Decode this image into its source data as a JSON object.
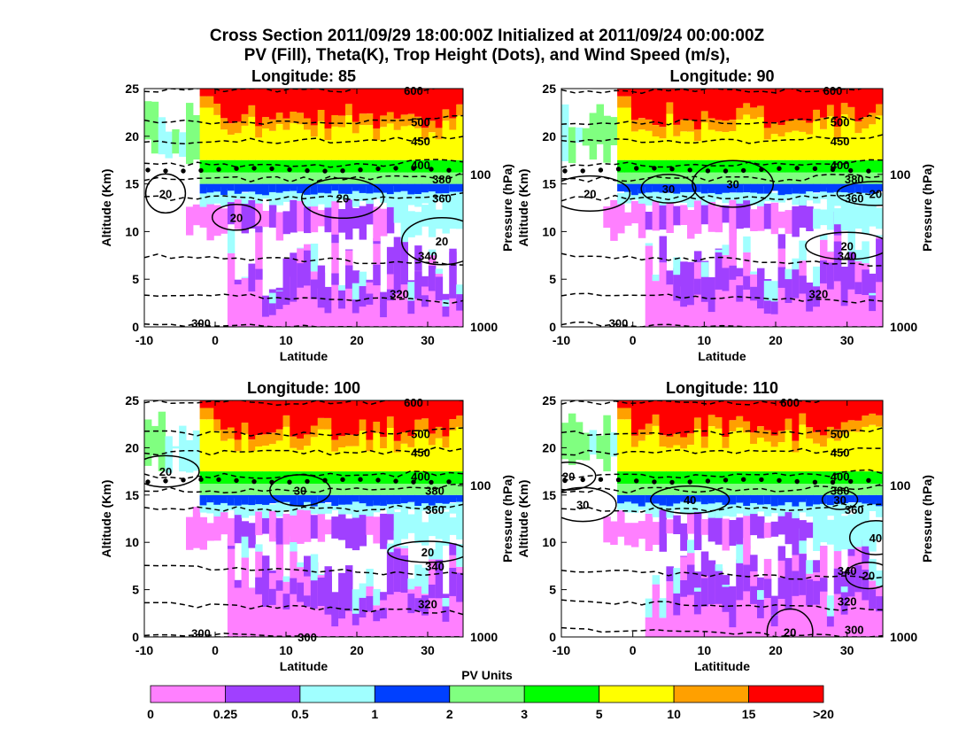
{
  "title": {
    "line1": "Cross Section 2011/09/29 18:00:00Z Initialized at 2011/09/24 00:00:00Z",
    "line2": "PV (Fill), Theta(K), Trop Height (Dots), and Wind Speed (m/s),"
  },
  "chart_data": [
    {
      "type": "heatmap",
      "title": "Longitude:  85",
      "xlabel": "Latitude",
      "ylabel": "Altitude (Km)",
      "ylabel_right": "Pressure (hPa)",
      "xlim": [
        -10,
        35
      ],
      "ylim": [
        0,
        25
      ],
      "x_ticks": [
        -10,
        0,
        10,
        20,
        30
      ],
      "y_ticks": [
        0,
        5,
        10,
        15,
        20,
        25
      ],
      "right_ticks": [
        {
          "label": "1000",
          "alt": 0
        },
        {
          "label": "100",
          "alt": 16
        }
      ],
      "tropopause_alt_km": 16.5,
      "theta_contours": [
        {
          "label": "300",
          "alt": 0.4,
          "lbl_x": -2
        },
        {
          "label": "320",
          "alt": 3.5,
          "lbl_x": 26
        },
        {
          "label": "340",
          "alt": 7.5,
          "lbl_x": 30
        },
        {
          "label": "360",
          "alt": 13.5,
          "lbl_x": 32
        },
        {
          "label": "380",
          "alt": 15.5,
          "lbl_x": 32
        },
        {
          "label": "400",
          "alt": 17.0,
          "lbl_x": 29
        },
        {
          "label": "450",
          "alt": 19.5,
          "lbl_x": 29
        },
        {
          "label": "500",
          "alt": 21.5,
          "lbl_x": 29
        },
        {
          "label": "600",
          "alt": 24.8,
          "lbl_x": 28
        }
      ],
      "wind_labels": [
        {
          "label": "20",
          "lat": -7,
          "alt": 14.0
        },
        {
          "label": "20",
          "lat": 3,
          "alt": 11.5
        },
        {
          "label": "20",
          "lat": 18,
          "alt": 13.5
        },
        {
          "label": "20",
          "lat": 32,
          "alt": 9.0
        }
      ]
    },
    {
      "type": "heatmap",
      "title": "Longitude:   90",
      "xlabel": "Latitude",
      "ylabel": "Altitude (Km)",
      "ylabel_right": "Pressure (hPa)",
      "xlim": [
        -10,
        35
      ],
      "ylim": [
        0,
        25
      ],
      "x_ticks": [
        -10,
        0,
        10,
        20,
        30
      ],
      "y_ticks": [
        0,
        5,
        10,
        15,
        20,
        25
      ],
      "right_ticks": [
        {
          "label": "1000",
          "alt": 0
        },
        {
          "label": "100",
          "alt": 16
        }
      ],
      "tropopause_alt_km": 16.5,
      "theta_contours": [
        {
          "label": "300",
          "alt": 0.4,
          "lbl_x": -2
        },
        {
          "label": "320",
          "alt": 3.5,
          "lbl_x": 26
        },
        {
          "label": "340",
          "alt": 7.5,
          "lbl_x": 30
        },
        {
          "label": "360",
          "alt": 13.5,
          "lbl_x": 31
        },
        {
          "label": "380",
          "alt": 15.5,
          "lbl_x": 31
        },
        {
          "label": "400",
          "alt": 17.0,
          "lbl_x": 29
        },
        {
          "label": "450",
          "alt": 19.5,
          "lbl_x": 29
        },
        {
          "label": "500",
          "alt": 21.5,
          "lbl_x": 29
        },
        {
          "label": "600",
          "alt": 24.8,
          "lbl_x": 28
        }
      ],
      "wind_labels": [
        {
          "label": "20",
          "lat": -6,
          "alt": 14.0
        },
        {
          "label": "30",
          "lat": 5,
          "alt": 14.5
        },
        {
          "label": "30",
          "lat": 14,
          "alt": 15.0
        },
        {
          "label": "20",
          "lat": 30,
          "alt": 8.5
        },
        {
          "label": "20",
          "lat": 34,
          "alt": 14.0
        }
      ]
    },
    {
      "type": "heatmap",
      "title": "Longitude:  100",
      "xlabel": "Latitude",
      "ylabel": "Altitude (Km)",
      "ylabel_right": "Pressure (hPa)",
      "xlim": [
        -10,
        35
      ],
      "ylim": [
        0,
        25
      ],
      "x_ticks": [
        -10,
        0,
        10,
        20,
        30
      ],
      "y_ticks": [
        0,
        5,
        10,
        15,
        20,
        25
      ],
      "right_ticks": [
        {
          "label": "1000",
          "alt": 0
        },
        {
          "label": "100",
          "alt": 16
        }
      ],
      "tropopause_alt_km": 16.5,
      "theta_contours": [
        {
          "label": "300",
          "alt": 0.4,
          "lbl_x": -2
        },
        {
          "label": "300",
          "alt": -0.2,
          "lbl_x": 13
        },
        {
          "label": "320",
          "alt": 3.5,
          "lbl_x": 30
        },
        {
          "label": "340",
          "alt": 7.5,
          "lbl_x": 31
        },
        {
          "label": "360",
          "alt": 13.5,
          "lbl_x": 31
        },
        {
          "label": "380",
          "alt": 15.5,
          "lbl_x": 31
        },
        {
          "label": "400",
          "alt": 17.0,
          "lbl_x": 29
        },
        {
          "label": "450",
          "alt": 19.5,
          "lbl_x": 29
        },
        {
          "label": "500",
          "alt": 21.5,
          "lbl_x": 29
        },
        {
          "label": "600",
          "alt": 24.8,
          "lbl_x": 28
        }
      ],
      "wind_labels": [
        {
          "label": "20",
          "lat": -7,
          "alt": 17.5
        },
        {
          "label": "30",
          "lat": 12,
          "alt": 15.5
        },
        {
          "label": "20",
          "lat": 30,
          "alt": 9.0
        }
      ]
    },
    {
      "type": "heatmap",
      "title": "Longitude:  110",
      "xlabel": "Latititude",
      "ylabel": "Altitude (Km)",
      "ylabel_right": "Pressure (hPa)",
      "xlim": [
        -10,
        35
      ],
      "ylim": [
        0,
        25
      ],
      "x_ticks": [
        -10,
        0,
        10,
        20,
        30
      ],
      "y_ticks": [
        0,
        5,
        10,
        15,
        20,
        25
      ],
      "right_ticks": [
        {
          "label": "1000",
          "alt": 0
        },
        {
          "label": "100",
          "alt": 16
        }
      ],
      "tropopause_alt_km": 16.5,
      "theta_contours": [
        {
          "label": "300",
          "alt": 0.8,
          "lbl_x": 31
        },
        {
          "label": "320",
          "alt": 3.8,
          "lbl_x": 30
        },
        {
          "label": "340",
          "alt": 7.0,
          "lbl_x": 30
        },
        {
          "label": "360",
          "alt": 13.5,
          "lbl_x": 31
        },
        {
          "label": "380",
          "alt": 15.5,
          "lbl_x": 29
        },
        {
          "label": "400",
          "alt": 17.0,
          "lbl_x": 29
        },
        {
          "label": "450",
          "alt": 19.5,
          "lbl_x": 29
        },
        {
          "label": "500",
          "alt": 21.5,
          "lbl_x": 29
        },
        {
          "label": "600",
          "alt": 24.8,
          "lbl_x": 22
        }
      ],
      "wind_labels": [
        {
          "label": "20",
          "lat": -9,
          "alt": 17.0
        },
        {
          "label": "30",
          "lat": -7,
          "alt": 14.0
        },
        {
          "label": "40",
          "lat": 8,
          "alt": 14.5
        },
        {
          "label": "30",
          "lat": 29,
          "alt": 14.5
        },
        {
          "label": "40",
          "lat": 34,
          "alt": 10.5
        },
        {
          "label": "20",
          "lat": 33,
          "alt": 6.5
        },
        {
          "label": "20",
          "lat": 22,
          "alt": 0.5
        }
      ]
    }
  ],
  "colorbar": {
    "title": "PV Units",
    "tick_labels": [
      "0",
      "0.25",
      "0.5",
      "1",
      "2",
      "3",
      "5",
      "10",
      "15",
      ">20"
    ],
    "colors": [
      "#ff80ff",
      "#a040ff",
      "#a0ffff",
      "#0040ff",
      "#80ff80",
      "#00ff00",
      "#ffff00",
      "#ffa000",
      "#ff0000"
    ]
  },
  "theme": {
    "trop_dot_color": "#000000",
    "contour_color": "#000000"
  }
}
